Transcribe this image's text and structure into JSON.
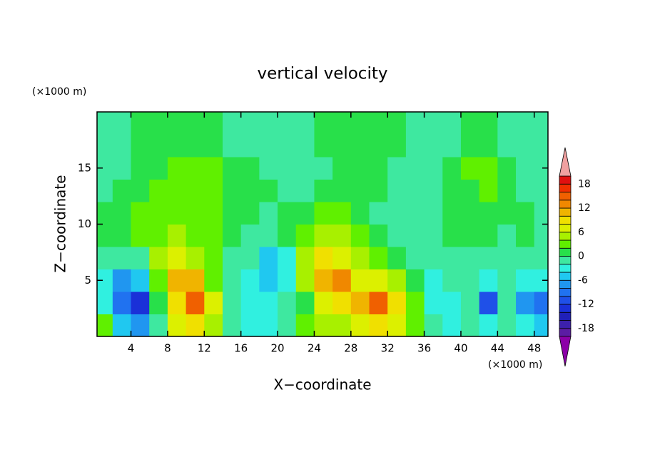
{
  "chart_data": {
    "type": "contour",
    "title": "vertical velocity",
    "x_label": "X−coordinate",
    "y_label": "Z−coordinate",
    "y_units": "(×1000 m)",
    "x_units": "(×1000 m)",
    "xlim": [
      0.3,
      49.5
    ],
    "ylim": [
      0,
      20
    ],
    "xticks": [
      4,
      8,
      12,
      16,
      20,
      24,
      28,
      32,
      36,
      40,
      44,
      48
    ],
    "yticks": [
      5,
      10,
      15
    ],
    "x": [
      1,
      3,
      5,
      7,
      9,
      11,
      13,
      15,
      17,
      19,
      21,
      23,
      25,
      27,
      29,
      31,
      33,
      35,
      37,
      39,
      41,
      43,
      45,
      47,
      49
    ],
    "y": [
      1,
      3,
      5,
      7,
      9,
      11,
      13,
      15,
      17,
      19
    ],
    "z": [
      [
        2,
        -6,
        -8,
        -2,
        6,
        8,
        4,
        -2,
        -4,
        -4,
        -2,
        2,
        4,
        4,
        6,
        8,
        6,
        2,
        -2,
        -4,
        -2,
        -4,
        -2,
        -4,
        -6
      ],
      [
        -4,
        -10,
        -14,
        0,
        8,
        14,
        6,
        -2,
        -4,
        -4,
        -2,
        0,
        6,
        8,
        10,
        14,
        8,
        2,
        -4,
        -4,
        -2,
        -12,
        -2,
        -8,
        -10
      ],
      [
        -4,
        -8,
        -6,
        2,
        10,
        10,
        2,
        -2,
        -4,
        -6,
        -4,
        4,
        10,
        12,
        6,
        6,
        4,
        0,
        -4,
        -2,
        -2,
        -4,
        -2,
        -4,
        -4
      ],
      [
        -2,
        -2,
        -2,
        4,
        6,
        4,
        2,
        -2,
        -2,
        -6,
        -4,
        4,
        8,
        6,
        4,
        2,
        0,
        -2,
        -2,
        -2,
        -2,
        -2,
        -2,
        -2,
        -2
      ],
      [
        0,
        0,
        2,
        2,
        4,
        2,
        2,
        0,
        -2,
        -2,
        0,
        2,
        4,
        4,
        2,
        0,
        -2,
        -2,
        -2,
        0,
        0,
        0,
        -2,
        0,
        -2
      ],
      [
        0,
        0,
        2,
        2,
        2,
        2,
        2,
        0,
        0,
        -2,
        0,
        0,
        2,
        2,
        0,
        -2,
        -2,
        -2,
        -2,
        0,
        0,
        0,
        0,
        0,
        -2
      ],
      [
        -2,
        0,
        0,
        2,
        2,
        2,
        2,
        0,
        0,
        0,
        -2,
        -2,
        0,
        0,
        0,
        0,
        -2,
        -2,
        -2,
        0,
        0,
        2,
        0,
        -2,
        -2
      ],
      [
        -2,
        -2,
        0,
        0,
        2,
        2,
        2,
        0,
        0,
        -2,
        -2,
        -2,
        -2,
        0,
        0,
        0,
        -2,
        -2,
        -2,
        0,
        2,
        2,
        0,
        -2,
        -2
      ],
      [
        -2,
        -2,
        0,
        0,
        0,
        0,
        0,
        -2,
        -2,
        -2,
        -2,
        -2,
        0,
        0,
        0,
        0,
        0,
        -2,
        -2,
        -2,
        0,
        0,
        -2,
        -2,
        -2
      ],
      [
        -2,
        -2,
        0,
        0,
        0,
        0,
        0,
        -2,
        -2,
        -2,
        -2,
        -2,
        0,
        0,
        0,
        0,
        0,
        -2,
        -2,
        -2,
        0,
        0,
        -2,
        -2,
        -2
      ]
    ],
    "levels": [
      -20,
      -18,
      -16,
      -14,
      -12,
      -10,
      -8,
      -6,
      -4,
      -2,
      0,
      2,
      4,
      6,
      8,
      10,
      12,
      14,
      16,
      18,
      20
    ],
    "colors": [
      "#8c00a8",
      "#5c1ca4",
      "#3c20ac",
      "#2020b8",
      "#1a30d8",
      "#1f50e8",
      "#2072f0",
      "#2096f0",
      "#20c8f0",
      "#30f0e0",
      "#3ee8a0",
      "#28e04a",
      "#60f000",
      "#a8f000",
      "#dcf000",
      "#f0e000",
      "#f0b400",
      "#f08800",
      "#f06000",
      "#f03000",
      "#e01010",
      "#f0a0a0"
    ],
    "colorbar_ticks": [
      -18,
      -12,
      -6,
      0,
      6,
      12,
      18
    ]
  }
}
